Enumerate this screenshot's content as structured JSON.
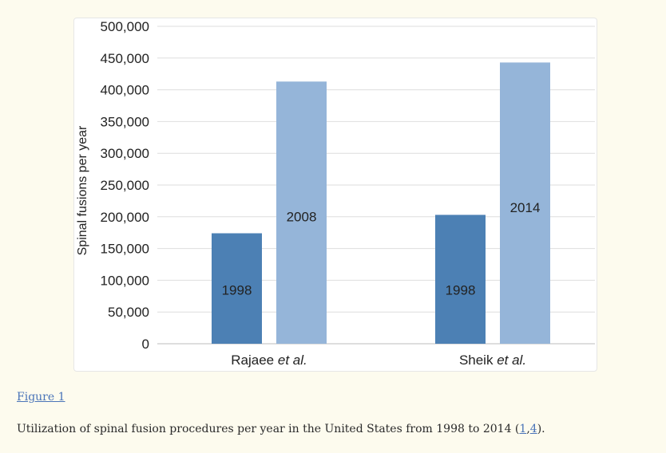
{
  "chart_data": {
    "type": "bar",
    "ylabel": "Spinal fusions per year",
    "ylim": [
      0,
      500000
    ],
    "yticks": [
      0,
      50000,
      100000,
      150000,
      200000,
      250000,
      300000,
      350000,
      400000,
      450000,
      500000
    ],
    "ytick_labels": [
      "0",
      "50,000",
      "100,000",
      "150,000",
      "200,000",
      "250,000",
      "300,000",
      "350,000",
      "400,000",
      "450,000",
      "500,000"
    ],
    "grid": true,
    "groups": [
      {
        "label_main": "Rajaee",
        "label_suffix": "et al.",
        "bars": [
          {
            "label": "1998",
            "value": 174000,
            "color": "#4c80b4"
          },
          {
            "label": "2008",
            "value": 413000,
            "color": "#95b5d9"
          }
        ]
      },
      {
        "label_main": "Sheik",
        "label_suffix": "et al.",
        "bars": [
          {
            "label": "1998",
            "value": 203000,
            "color": "#4c80b4"
          },
          {
            "label": "2014",
            "value": 443000,
            "color": "#95b5d9"
          }
        ]
      }
    ]
  },
  "figure_link": "Figure 1",
  "caption": {
    "text": "Utilization of spinal fusion procedures per year in the United States from 1998 to 2014 (",
    "ref1": "1",
    "sep": ",",
    "ref2": "4",
    "end": ")."
  }
}
